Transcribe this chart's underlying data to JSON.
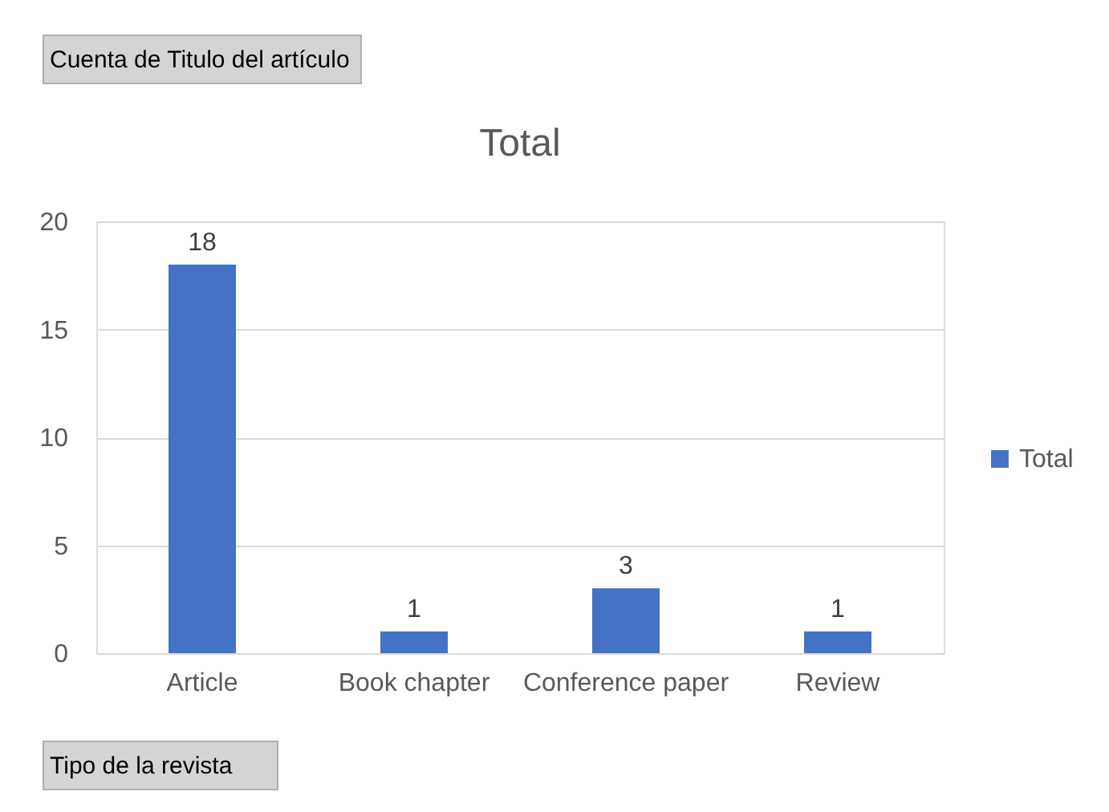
{
  "chart_data": {
    "type": "bar",
    "title": "Total",
    "categories": [
      "Article",
      "Book chapter",
      "Conference paper",
      "Review"
    ],
    "series": [
      {
        "name": "Total",
        "color": "#4472c4",
        "values": [
          18,
          1,
          3,
          1
        ]
      }
    ],
    "ylim": [
      0,
      20
    ],
    "yticks": [
      0,
      5,
      10,
      15,
      20
    ],
    "grid": "y",
    "legend": "right",
    "data_labels": true,
    "annotations": [
      "Cuenta de Titulo del artículo",
      "Tipo de la revista"
    ]
  }
}
